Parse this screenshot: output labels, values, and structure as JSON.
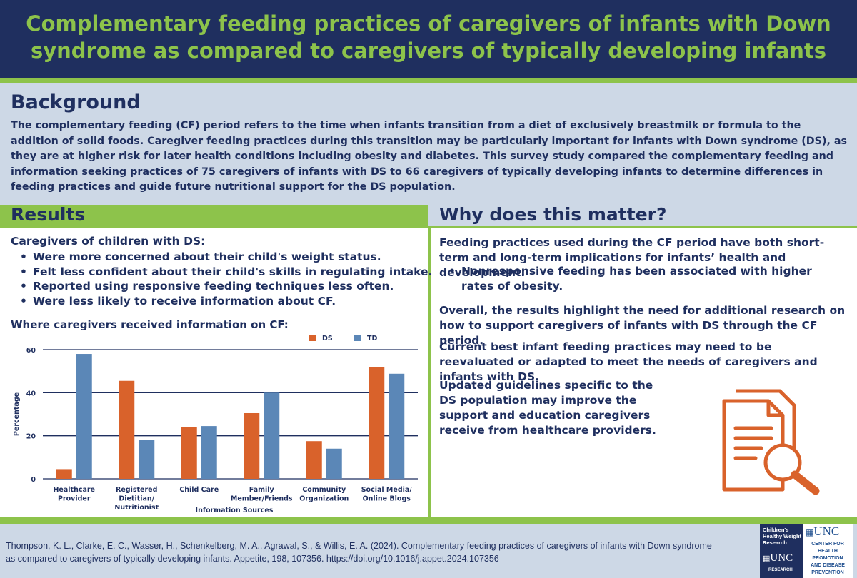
{
  "header": {
    "title": "Complementary feeding practices of caregivers of infants with Down syndrome as compared to caregivers of typically developing infants"
  },
  "background": {
    "heading": "Background",
    "text": "The complementary feeding (CF) period refers to the time when infants transition from a diet of exclusively breastmilk or formula to the addition of solid foods. Caregiver feeding practices during this transition may be particularly important for infants with Down syndrome (DS), as they are at higher risk for later health conditions including obesity and diabetes. This survey study compared the complementary feeding and information seeking practices of 75 caregivers of infants with DS  to 66 caregivers of typically developing infants to determine differences in feeding practices and guide future nutritional support for the DS population."
  },
  "results": {
    "heading": "Results",
    "intro": "Caregivers of children with DS:",
    "bullets": [
      "Were more concerned about their child's weight status.",
      "Felt less confident about their child's skills in regulating intake.",
      "Reported using responsive feeding techniques less often.",
      "Were less likely to receive information about CF."
    ],
    "chart_title": "Where caregivers received information on CF:"
  },
  "why": {
    "heading": "Why does this matter?",
    "p1": "Feeding practices used during the CF period have both short-term and long-term implications for infants’ health and development.",
    "bullet": "Nonresponsive feeding has been associated with higher rates of obesity.",
    "p2": "Overall, the results highlight the need for additional research on how to support caregivers of infants with DS through the CF period.",
    "p3": "Current best infant feeding practices may need to be reevaluated or adapted to meet the needs of caregivers and infants with DS.",
    "p4": "Updated guidelines specific to the DS population may improve the support and education caregivers receive from healthcare providers.",
    "icon": "document-magnifier-icon"
  },
  "footer": {
    "citation": "Thompson, K. L., Clarke, E. C., Wasser, H., Schenkelberg, M. A., Agrawal, S., & Willis, E. A. (2024). Complementary feeding practices of caregivers of infants with Down syndrome as compared to caregivers of typically developing infants. Appetite, 198, 107356. https://doi.org/10.1016/j.appet.2024.107356",
    "logo1_lines": [
      "Children's",
      "Healthy Weight",
      "Research"
    ],
    "logo1_unc": "UNC",
    "logo1_sub": "RESEARCH",
    "logo2_unc": "UNC",
    "logo2_lines": [
      "CENTER FOR",
      "HEALTH",
      "PROMOTION",
      "AND DISEASE",
      "PREVENTION"
    ]
  },
  "colors": {
    "navy": "#1f2f5f",
    "green": "#8dc34b",
    "light_blue": "#cdd8e6",
    "ds": "#d9622b",
    "td": "#5b87b7"
  },
  "chart_data": {
    "type": "bar",
    "categories": [
      [
        "Healthcare",
        "Provider"
      ],
      [
        "Registered",
        "Dietitian/",
        "Nutritionist"
      ],
      [
        "Child Care"
      ],
      [
        "Family",
        "Member/Friends"
      ],
      [
        "Community",
        "Organization"
      ],
      [
        "Social Media/",
        "Online Blogs"
      ]
    ],
    "series": [
      {
        "name": "DS",
        "values": [
          4.5,
          45.5,
          24,
          30.5,
          17.5,
          52
        ]
      },
      {
        "name": "TD",
        "values": [
          58,
          18,
          24.5,
          40,
          14,
          48.8
        ]
      }
    ],
    "xlabel": "Information Sources",
    "ylabel": "Percentage",
    "ylim": [
      0,
      60
    ],
    "yticks": [
      0,
      20,
      40,
      60
    ],
    "legend": "top-center",
    "grid": true
  }
}
